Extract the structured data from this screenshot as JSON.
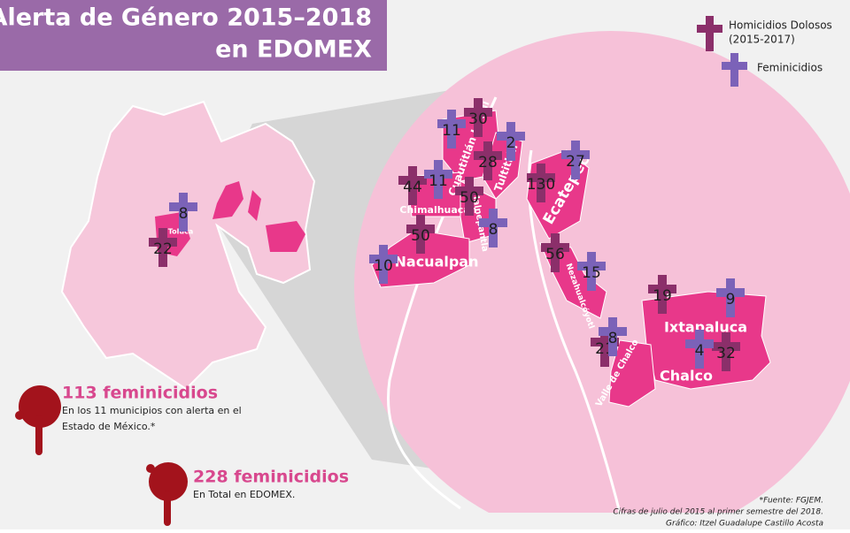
{
  "header": {
    "title_line1": "Alerta de Género 2015–2018",
    "title_line2": "en EDOMEX"
  },
  "legend": {
    "homicidios_line1": "Homicidios Dolosos",
    "homicidios_line2": "(2015-2017)",
    "feminicidios": "Feminicidios"
  },
  "map": {
    "municipalities": [
      {
        "name": "Toluca",
        "homicidios": 22,
        "feminicidios": 8
      },
      {
        "name": "Cuautitlán Izcalli",
        "homicidios": 30,
        "feminicidios": 11
      },
      {
        "name": "Tultitlán",
        "homicidios": 28,
        "feminicidios": 2
      },
      {
        "name": "Chimalhuacán",
        "homicidios": 44,
        "feminicidios": 11
      },
      {
        "name": "Tlalnepantla",
        "homicidios": 50,
        "feminicidios": 8
      },
      {
        "name": "Ecatepec",
        "homicidios": 130,
        "feminicidios": 27
      },
      {
        "name": "Nacualpan",
        "homicidios": 50,
        "feminicidios": 10
      },
      {
        "name": "Nezahualcóyotl",
        "homicidios": 56,
        "feminicidios": 15
      },
      {
        "name": "Ixtapaluca",
        "homicidios": 19,
        "feminicidios": 9
      },
      {
        "name": "Valle de Chalco",
        "homicidios": 21,
        "feminicidios": 8
      },
      {
        "name": "Chalco",
        "homicidios": 32,
        "feminicidios": 4
      }
    ]
  },
  "stats": [
    {
      "headline": "113 feminicidios",
      "lines": [
        "En los 11 municipios con alerta en el",
        "Estado de México.*"
      ]
    },
    {
      "headline": "228 feminicidios",
      "lines": [
        "En Total en EDOMEX."
      ]
    }
  ],
  "footer": [
    "*Fuente: FGJEM.",
    "Cifras de julio del 2015 al primer semestre del 2018.",
    "Gráfico: Itzel Guadalupe Castillo Acosta"
  ]
}
